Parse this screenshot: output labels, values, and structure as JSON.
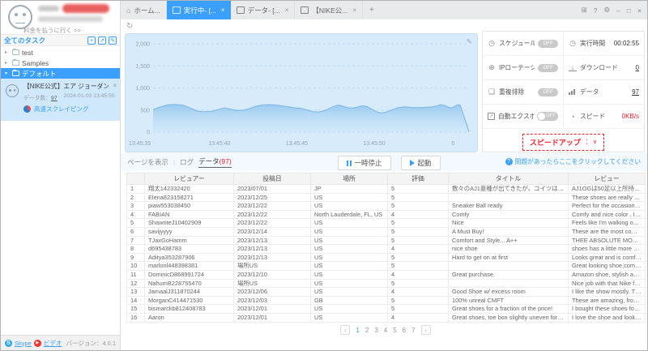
{
  "icons": {
    "home": "⌂",
    "refresh": "↻",
    "edit_pencil": "✎",
    "window_menu": "⊞",
    "window_help": "?",
    "window_settings": "⚙",
    "window_min": "–",
    "window_max": "□",
    "window_close": "×",
    "tab_close": "×",
    "plus_tab": "+",
    "caret_collapsed": "▸",
    "caret_expanded": "▾",
    "speedup_chevron": "∨",
    "card_close": "×",
    "schedule": "◷",
    "runtime": "◷",
    "ip": "⊕",
    "download": "↓",
    "dedup": "❏",
    "export": "↗",
    "speed": "◔"
  },
  "tabs": [
    {
      "label": "ホーム...",
      "active": false
    },
    {
      "label": "実行中- [...",
      "active": true
    },
    {
      "label": "データ- [...",
      "active": false
    },
    {
      "label": "【NIKE公...",
      "active": false
    }
  ],
  "sidebar": {
    "pay_link": "料金を払うに行く >>",
    "tasks_header": "全てのタスク",
    "header_icons": {
      "add": "+",
      "import": "↗",
      "edit": "✎"
    },
    "tree": [
      {
        "label": "test"
      },
      {
        "label": "Samples"
      },
      {
        "label": "デフォルト",
        "selected": true
      }
    ],
    "task_card": {
      "title": "【NIKE公式】エア ジョーダン 1ズーム コ...",
      "data_label": "データ数：",
      "data_count": "97",
      "timestamp": "2024-01-03 13:45:55",
      "mode": "高速スクレイピング"
    },
    "footer": {
      "skype": "Skype",
      "video": "ビデオ",
      "version": "バージョン：4.0.1"
    }
  },
  "chart_data": {
    "type": "area",
    "title": "",
    "ylim": [
      0,
      2000
    ],
    "yticks": [
      "0",
      "500",
      "1,000",
      "1,500",
      "2,000"
    ],
    "xticks": [
      {
        "label": "13:45:35",
        "pos": 0.0
      },
      {
        "label": "13:45:40",
        "pos": 0.21
      },
      {
        "label": "13:45:45",
        "pos": 0.455
      },
      {
        "label": "13:45:50",
        "pos": 0.7
      },
      {
        "label": "0",
        "pos": 0.95
      }
    ],
    "series": [
      {
        "name": "scraping-rate",
        "points": [
          [
            0,
            510
          ],
          [
            0.02,
            560
          ],
          [
            0.045,
            615
          ],
          [
            0.07,
            625
          ],
          [
            0.095,
            610
          ],
          [
            0.115,
            555
          ],
          [
            0.14,
            475
          ],
          [
            0.16,
            462
          ],
          [
            0.185,
            470
          ],
          [
            0.21,
            520
          ],
          [
            0.225,
            545
          ],
          [
            0.245,
            520
          ],
          [
            0.265,
            487
          ],
          [
            0.285,
            495
          ],
          [
            0.305,
            530
          ],
          [
            0.325,
            585
          ],
          [
            0.345,
            615
          ],
          [
            0.37,
            622
          ],
          [
            0.395,
            610
          ],
          [
            0.42,
            580
          ],
          [
            0.445,
            555
          ],
          [
            0.465,
            540
          ],
          [
            0.485,
            505
          ],
          [
            0.505,
            465
          ],
          [
            0.525,
            455
          ],
          [
            0.545,
            490
          ],
          [
            0.565,
            560
          ],
          [
            0.585,
            612
          ],
          [
            0.6,
            590
          ],
          [
            0.615,
            555
          ],
          [
            0.63,
            545
          ],
          [
            0.645,
            560
          ],
          [
            0.66,
            595
          ],
          [
            0.675,
            585
          ],
          [
            0.69,
            530
          ],
          [
            0.705,
            470
          ],
          [
            0.72,
            435
          ],
          [
            0.735,
            445
          ],
          [
            0.755,
            500
          ],
          [
            0.775,
            555
          ],
          [
            0.795,
            570
          ],
          [
            0.815,
            560
          ],
          [
            0.835,
            552
          ],
          [
            0.855,
            558
          ],
          [
            0.875,
            565
          ],
          [
            0.895,
            585
          ],
          [
            0.91,
            620
          ],
          [
            0.925,
            600
          ],
          [
            0.935,
            560
          ],
          [
            0.945,
            545
          ],
          [
            0.955,
            585
          ],
          [
            0.965,
            620
          ],
          [
            0.972,
            610
          ],
          [
            1.0,
            10
          ]
        ]
      }
    ],
    "grid": "dashed-horizontal",
    "legend": "none"
  },
  "stats": {
    "rows": [
      {
        "left": {
          "label": "スケジュール",
          "badge": "OFF"
        },
        "right": {
          "label": "実行時間",
          "value": "00:02:55",
          "style": "plain"
        }
      },
      {
        "left": {
          "label": "IPローテーション",
          "badge": "OFF"
        },
        "right": {
          "label": "ダウンロード",
          "value": "0",
          "style": "link"
        }
      },
      {
        "left": {
          "label": "重複排除",
          "badge": "OFF"
        },
        "right": {
          "label": "データ",
          "value": "97",
          "style": "link"
        }
      },
      {
        "left": {
          "label": "自動エクスポート",
          "toggle": "OFF"
        },
        "right": {
          "label": "スピード",
          "value": "0KB/s",
          "style": "red"
        }
      }
    ],
    "speedup_button": "スピードアップ"
  },
  "toolbar": {
    "view_tabs": [
      {
        "label": "ページを表示"
      },
      {
        "label": "ログ"
      },
      {
        "label": "データ",
        "count": "(97)",
        "active": true
      }
    ],
    "pause_button": "一時停止",
    "start_button": "起動",
    "help_text": "問題があったらここをクリックしてください"
  },
  "table": {
    "headers": [
      "",
      "レビュアー",
      "投稿日",
      "場所",
      "評価",
      "タイトル",
      "レビュー"
    ],
    "rows": [
      [
        "1",
        "翔太142332420",
        "2023/07/01",
        "JP",
        "5",
        "数々のAJ1亜種が出てきたが、コイツは最強",
        "AJ1OGは50足以上所持しているが、アレ..."
      ],
      [
        "2",
        "Elena823158271",
        "2023/12/25",
        "US",
        "5",
        "",
        "These shoes are really comfortable and lo..."
      ],
      [
        "3",
        "piaw553038450",
        "2023/12/22",
        "US",
        "5",
        "Sneaker Ball ready",
        "Perfect for the occasion. And came soone..."
      ],
      [
        "4",
        "FABIAN",
        "2023/12/22",
        "North Lauderdale, FL, US",
        "4",
        "Comfy",
        "Comfy and nice color . I bought a few for ..."
      ],
      [
        "5",
        "ShawnteJ10402909",
        "2023/12/22",
        "US",
        "5",
        "Nice",
        "Feels like I'm walking on pillows. I, never t..."
      ],
      [
        "6",
        "savijyyyy",
        "2023/12/14",
        "US",
        "5",
        "A Must Buy!",
        "These are the most comfortable shoes I'v..."
      ],
      [
        "7",
        "TJaxGoHamm",
        "2023/12/13",
        "US",
        "5",
        "Comfort and Style... A++",
        "THEE ABSOLUTE MOST COMFORTABL..."
      ],
      [
        "8",
        "d695438783",
        "2023/12/13",
        "US",
        "4",
        "nice shoe",
        "shoes has a little more grey than i expecte..."
      ],
      [
        "9",
        "Aditya353287906",
        "2023/12/13",
        "US",
        "5",
        "Hard to get on at first",
        "Looks great and is comfortable, was hard ..."
      ],
      [
        "10",
        "marlonl448398381",
        "場所US",
        "US",
        "5",
        "",
        "Great looking shoe,comfortable and lightw..."
      ],
      [
        "11",
        "DominicD868991724",
        "2023/12/10",
        "US",
        "4",
        "Great purchase.",
        "Amazon shoe, stylish and comfortable."
      ],
      [
        "12",
        "NahumB228755470",
        "場所US",
        "US",
        "5",
        "",
        "Nice job with that Nike forever"
      ],
      [
        "13",
        "JamaalJ311870244",
        "2023/12/06",
        "US",
        "4",
        "Good Shoe w/ excess room",
        "I like the show mostly. The shoes are comf..."
      ],
      [
        "14",
        "MorganC414471530",
        "2023/12/03",
        "GB",
        "5",
        "100% unreal CMFT",
        "These are amazing, from the materials to t..."
      ],
      [
        "15",
        "bismarckb812408783",
        "2023/12/01",
        "US",
        "5",
        "Great shoes for a fraction of the price!",
        "I bought these shoes for my daughter and ..."
      ],
      [
        "16",
        "Aaron",
        "2023/12/01",
        "US",
        "4",
        "Great shoes, toe box slightly uneven for me",
        "I love the shoe and look over all, especiall..."
      ]
    ]
  },
  "pagination": {
    "prev": "‹",
    "next": "›",
    "pages": [
      "1",
      "2",
      "3",
      "4",
      "5",
      "6",
      "7"
    ],
    "current": "1"
  },
  "colors": {
    "accent": "#3aa0fb",
    "red": "#f5222d",
    "chart_bg": "#d8ebfa"
  }
}
